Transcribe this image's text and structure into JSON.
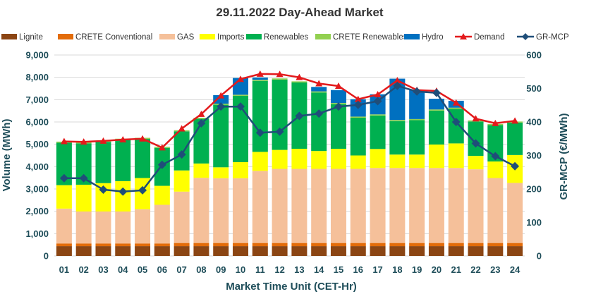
{
  "chart_data": {
    "type": "bar",
    "title": "29.11.2022  Day-Ahead Market",
    "xlabel": "Market Time Unit (CET-Hr)",
    "ylabel": "Volume (MWh)",
    "y2label": "GR-MCP (€/MWh)",
    "ylim": [
      0,
      9000
    ],
    "y2lim": [
      0,
      600
    ],
    "y_ticks": [
      "0",
      "1,000",
      "2,000",
      "3,000",
      "4,000",
      "5,000",
      "6,000",
      "7,000",
      "8,000",
      "9,000"
    ],
    "y2_ticks": [
      "0",
      "100",
      "200",
      "300",
      "400",
      "500",
      "600"
    ],
    "grid": true,
    "legend_position": "top",
    "categories": [
      "01",
      "02",
      "03",
      "04",
      "05",
      "06",
      "07",
      "08",
      "09",
      "10",
      "11",
      "12",
      "13",
      "14",
      "15",
      "16",
      "17",
      "18",
      "19",
      "20",
      "21",
      "22",
      "23",
      "24"
    ],
    "series": [
      {
        "name": "Lignite",
        "type": "bar",
        "color": "#8b4513",
        "values": [
          440,
          440,
          440,
          440,
          440,
          440,
          440,
          440,
          440,
          440,
          440,
          440,
          440,
          440,
          440,
          440,
          440,
          440,
          440,
          440,
          440,
          440,
          440,
          440
        ]
      },
      {
        "name": "CRETE Conventional",
        "type": "bar",
        "color": "#e36c0a",
        "values": [
          120,
          120,
          120,
          120,
          120,
          120,
          140,
          140,
          140,
          140,
          140,
          140,
          140,
          140,
          140,
          140,
          140,
          140,
          140,
          140,
          140,
          140,
          140,
          140
        ]
      },
      {
        "name": "GAS",
        "type": "bar",
        "color": "#f5c09a",
        "values": [
          1560,
          1430,
          1430,
          1430,
          1530,
          1730,
          2300,
          2920,
          2900,
          2900,
          3230,
          3320,
          3320,
          3320,
          3320,
          3320,
          3360,
          3360,
          3360,
          3360,
          3360,
          3300,
          2910,
          2690
        ]
      },
      {
        "name": "Imports",
        "type": "bar",
        "color": "#ffff00",
        "values": [
          1050,
          1200,
          1270,
          1360,
          1400,
          850,
          950,
          640,
          490,
          720,
          850,
          850,
          900,
          800,
          900,
          600,
          850,
          600,
          600,
          1050,
          1100,
          600,
          740,
          1250
        ]
      },
      {
        "name": "Renewables",
        "type": "bar",
        "color": "#00b050",
        "values": [
          1900,
          1850,
          1850,
          1850,
          1750,
          1700,
          1750,
          2000,
          2800,
          2970,
          3180,
          3150,
          2970,
          2620,
          2000,
          1690,
          1500,
          1500,
          1540,
          1520,
          1550,
          1540,
          1630,
          1450
        ]
      },
      {
        "name": "CRETE Renewables",
        "type": "bar",
        "color": "#92d050",
        "values": [
          50,
          50,
          50,
          50,
          50,
          50,
          50,
          50,
          50,
          50,
          50,
          50,
          50,
          50,
          50,
          50,
          50,
          50,
          50,
          50,
          50,
          50,
          50,
          50
        ]
      },
      {
        "name": "Hydro",
        "type": "bar",
        "color": "#0070c0",
        "values": [
          0,
          0,
          0,
          0,
          0,
          0,
          0,
          0,
          380,
          750,
          100,
          0,
          0,
          200,
          580,
          780,
          900,
          1850,
          1300,
          480,
          310,
          0,
          0,
          0
        ]
      },
      {
        "name": "Demand",
        "type": "line",
        "axis": "left",
        "color": "#e31a1c",
        "marker": "triangle",
        "values": [
          5130,
          5110,
          5150,
          5210,
          5250,
          4850,
          5700,
          6350,
          7180,
          7920,
          8150,
          8140,
          8000,
          7720,
          7610,
          7020,
          7230,
          7860,
          7430,
          7390,
          6860,
          6150,
          5940,
          6050
        ]
      },
      {
        "name": "GR-MCP",
        "type": "line",
        "axis": "right",
        "color": "#1f4e79",
        "marker": "diamond",
        "values": [
          232,
          232,
          198,
          192,
          196,
          272,
          303,
          396,
          446,
          446,
          368,
          371,
          418,
          425,
          446,
          451,
          462,
          508,
          491,
          487,
          400,
          336,
          298,
          268
        ]
      }
    ]
  }
}
